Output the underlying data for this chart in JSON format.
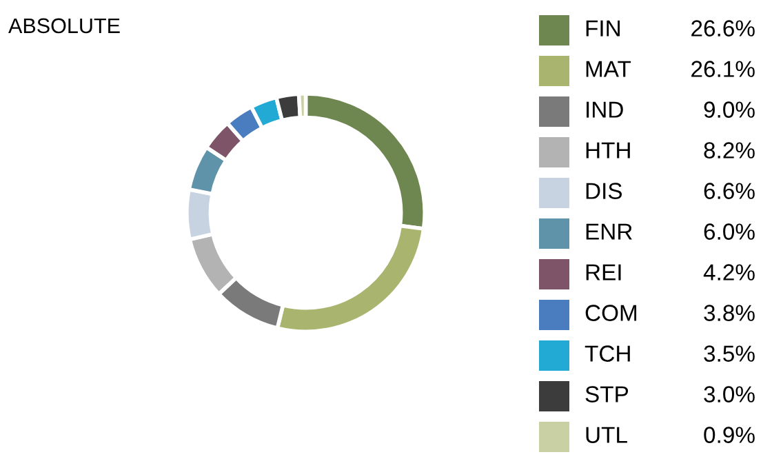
{
  "chart_data": {
    "type": "donut",
    "title": "ABSOLUTE",
    "categories": [
      "FIN",
      "MAT",
      "IND",
      "HTH",
      "DIS",
      "ENR",
      "REI",
      "COM",
      "TCH",
      "STP",
      "UTL"
    ],
    "values": [
      26.6,
      26.1,
      9.0,
      8.2,
      6.6,
      6.0,
      4.2,
      3.8,
      3.5,
      3.0,
      0.9
    ],
    "value_labels": [
      "26.6%",
      "26.1%",
      "9.0%",
      "8.2%",
      "6.6%",
      "6.0%",
      "4.2%",
      "3.8%",
      "3.5%",
      "3.0%",
      "0.9%"
    ],
    "colors": [
      "#6e8650",
      "#a9b56e",
      "#7a7a7a",
      "#b3b3b3",
      "#c7d3e0",
      "#5f93aa",
      "#7e5468",
      "#4a7cc0",
      "#22aad4",
      "#3c3c3c",
      "#c9d0a4"
    ],
    "legend": "right"
  }
}
